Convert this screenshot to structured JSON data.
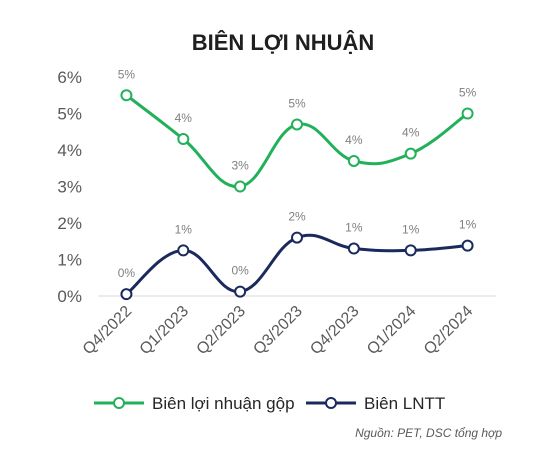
{
  "chart_data": {
    "type": "line",
    "title": "BIÊN LỢI NHUẬN",
    "categories": [
      "Q4/2022",
      "Q1/2023",
      "Q2/2023",
      "Q3/2023",
      "Q4/2023",
      "Q1/2024",
      "Q2/2024"
    ],
    "ylim": [
      0,
      6
    ],
    "yticks": [
      "0%",
      "1%",
      "2%",
      "3%",
      "4%",
      "5%",
      "6%"
    ],
    "grid": false,
    "legend_position": "bottom",
    "series": [
      {
        "name": "Biên lợi nhuận gộp",
        "color": "#22b15a",
        "values": [
          5.5,
          4.3,
          3.0,
          4.7,
          3.7,
          3.9,
          5.0
        ],
        "labels": [
          "5%",
          "4%",
          "3%",
          "5%",
          "4%",
          "4%",
          "5%"
        ]
      },
      {
        "name": "Biên LNTT",
        "color": "#1b2a5c",
        "values": [
          0.05,
          1.25,
          0.12,
          1.6,
          1.3,
          1.25,
          1.38
        ],
        "labels": [
          "0%",
          "1%",
          "0%",
          "2%",
          "1%",
          "1%",
          "1%"
        ]
      }
    ],
    "source": "Nguồn: PET, DSC tổng hợp"
  }
}
